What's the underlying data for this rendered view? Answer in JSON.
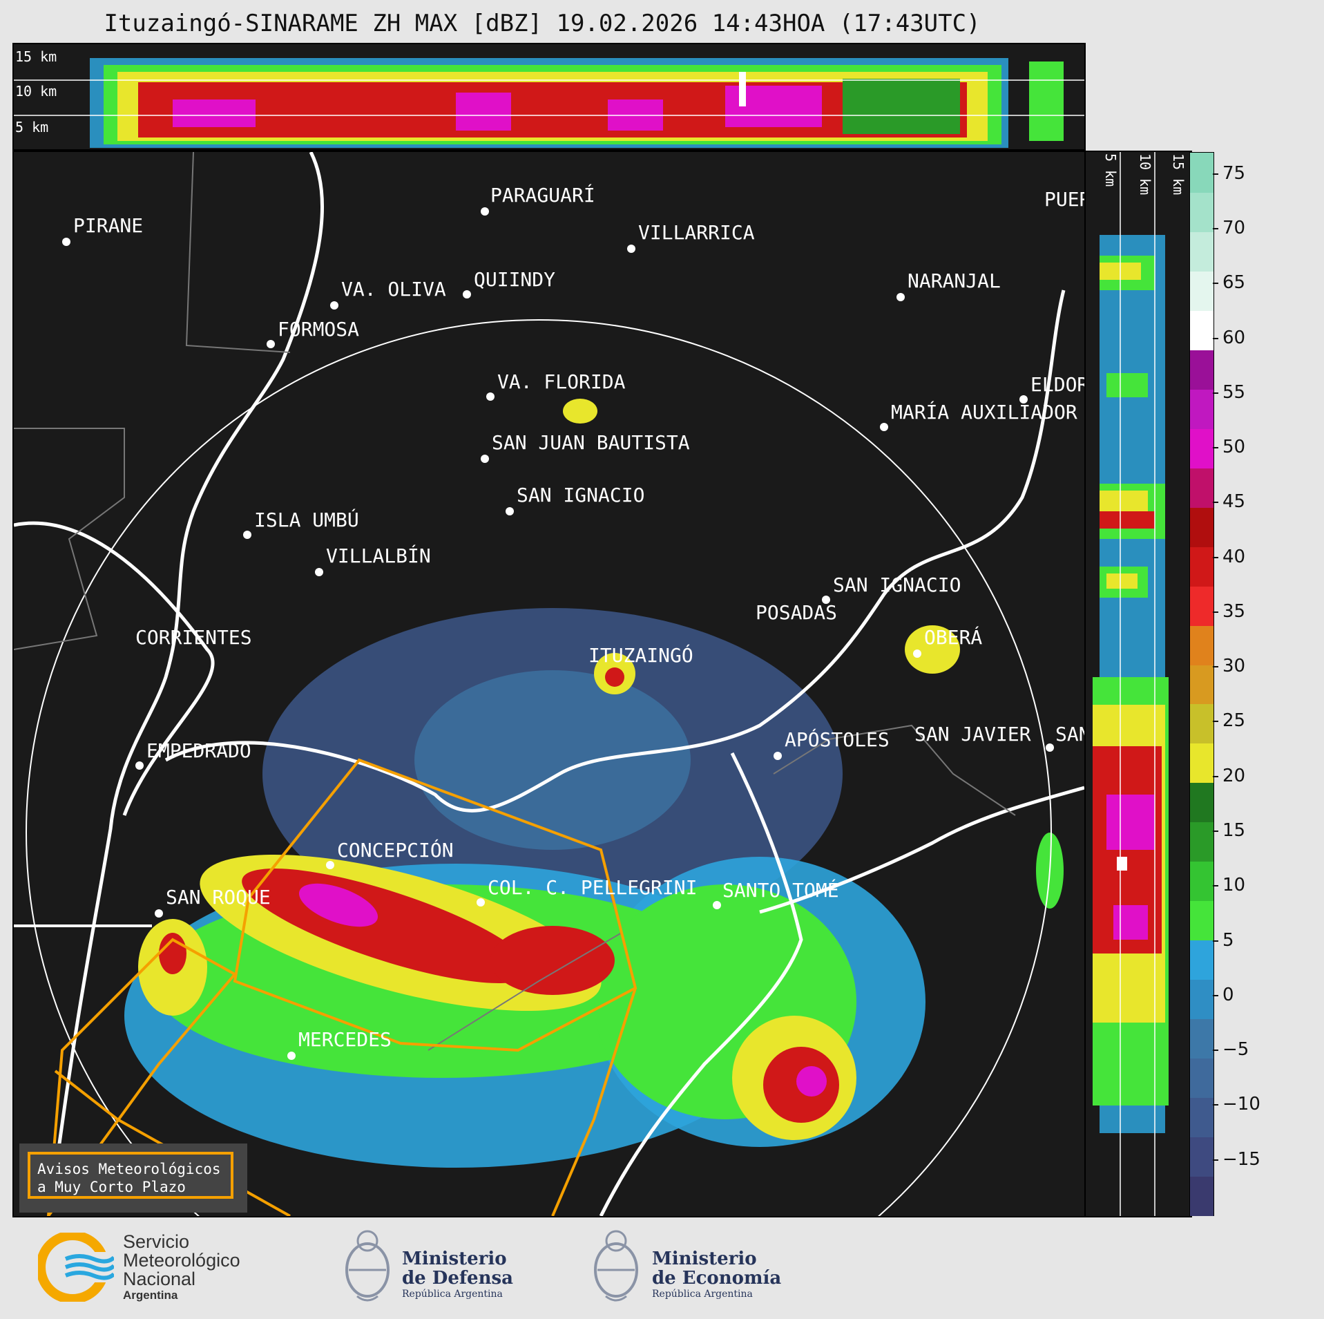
{
  "title": "Ituzaingó-SINARAME ZH MAX [dBZ] 19.02.2026 14:43HOA (17:43UTC)",
  "top_panel": {
    "labels": [
      "15 km",
      "10 km",
      "5 km"
    ]
  },
  "side_panel": {
    "labels": [
      "5 km",
      "10 km",
      "15 km"
    ]
  },
  "colorbar": {
    "unit": "dBZ",
    "ticks": [
      "75",
      "70",
      "65",
      "60",
      "55",
      "50",
      "45",
      "40",
      "35",
      "30",
      "25",
      "20",
      "15",
      "10",
      "5",
      "0",
      "−5",
      "−10",
      "−15"
    ],
    "range": [
      -20,
      77
    ],
    "colors": [
      "#3a3a6e",
      "#3e4a80",
      "#3f5a8e",
      "#3f6a9c",
      "#3d78a8",
      "#2f8ec4",
      "#2ea4dc",
      "#45e43a",
      "#34c432",
      "#2a9a28",
      "#207820",
      "#e8e62c",
      "#c8c02a",
      "#d89a20",
      "#e0821c",
      "#ee2a2a",
      "#d01818",
      "#b00e0e",
      "#c0106a",
      "#e010c8",
      "#c018c0",
      "#9a1098",
      "#ffffff",
      "#e4f6ee",
      "#c4ecdc",
      "#a4e2ca",
      "#88d8ba"
    ]
  },
  "cities": [
    {
      "name": "PARAGUARÍ"
    },
    {
      "name": "PIRANE"
    },
    {
      "name": "VILLARRICA"
    },
    {
      "name": "QUIINDY"
    },
    {
      "name": "VA. OLIVA"
    },
    {
      "name": "NARANJAL"
    },
    {
      "name": "FORMOSA"
    },
    {
      "name": "PUER"
    },
    {
      "name": "VA. FLORIDA"
    },
    {
      "name": "ELDOR"
    },
    {
      "name": "MARÍA AUXILIADOR"
    },
    {
      "name": "SAN JUAN BAUTISTA"
    },
    {
      "name": "SAN IGNACIO"
    },
    {
      "name": "ISLA UMBÚ"
    },
    {
      "name": "VILLALBÍN"
    },
    {
      "name": "SAN IGNACIO"
    },
    {
      "name": "POSADAS"
    },
    {
      "name": "CORRIENTES"
    },
    {
      "name": "ITUZAINGÓ"
    },
    {
      "name": "OBERÁ"
    },
    {
      "name": "EMPEDRADO"
    },
    {
      "name": "APÓSTOLES"
    },
    {
      "name": "SAN JAVIER"
    },
    {
      "name": "SAN"
    },
    {
      "name": "CONCEPCIÓN"
    },
    {
      "name": "COL. C. PELLEGRINI"
    },
    {
      "name": "SANTO TOMÉ"
    },
    {
      "name": "SAN ROQUE"
    },
    {
      "name": "MERCEDES"
    }
  ],
  "aviso": {
    "line1": "Avisos Meteorológicos",
    "line2": "a Muy Corto Plazo"
  },
  "logos": {
    "smn": [
      "Servicio",
      "Meteorológico",
      "Nacional",
      "Argentina"
    ],
    "defensa": [
      "Ministerio",
      "de Defensa",
      "República Argentina"
    ],
    "economia": [
      "Ministerio",
      "de Economía",
      "República Argentina"
    ]
  }
}
